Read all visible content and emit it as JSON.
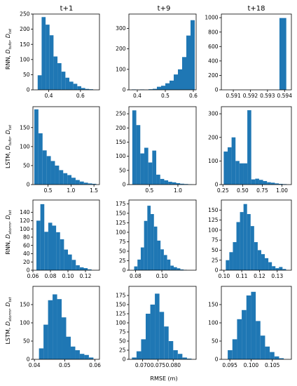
{
  "figure": {
    "col_titles": [
      "t+1",
      "t+9",
      "t+18"
    ],
    "xlabel": "RMSE (m)",
    "bar_color": "#1f77b4",
    "row_labels": [
      {
        "main": "RNN, ",
        "d1": "D",
        "s1": "tufo",
        "sep": ", ",
        "d2": "D",
        "s2": "tst"
      },
      {
        "main": "LSTM, ",
        "d1": "D",
        "s1": "tufo",
        "sep": ", ",
        "d2": "D",
        "s2": "tst"
      },
      {
        "main": "RNN, ",
        "d1": "D",
        "s1": "storm",
        "sep": ", ",
        "d2": "D",
        "s2": "tst"
      },
      {
        "main": "LSTM, ",
        "d1": "D",
        "s1": "storm",
        "sep": ", ",
        "d2": "D",
        "s2": "tst"
      }
    ]
  },
  "chart_data": [
    {
      "type": "bar",
      "row": 0,
      "col": 0,
      "title": "t+1",
      "xlim": [
        0.3,
        0.72
      ],
      "ylim": [
        0,
        250
      ],
      "xticks": [
        0.4,
        0.6
      ],
      "xtick_labels": [
        "0.4",
        "0.6"
      ],
      "yticks": [
        0,
        50,
        100,
        150,
        200,
        250
      ],
      "ytick_labels": [
        "0",
        "50",
        "100",
        "150",
        "200",
        "250"
      ],
      "bin_edges": [
        0.33,
        0.355,
        0.38,
        0.405,
        0.43,
        0.455,
        0.48,
        0.505,
        0.53,
        0.555,
        0.58,
        0.605,
        0.63,
        0.655,
        0.68,
        0.705
      ],
      "values": [
        48,
        240,
        215,
        180,
        110,
        88,
        60,
        40,
        27,
        20,
        12,
        6,
        3,
        2,
        0
      ]
    },
    {
      "type": "bar",
      "row": 0,
      "col": 1,
      "title": "t+9",
      "xlim": [
        0.37,
        0.61
      ],
      "ylim": [
        0,
        370
      ],
      "xticks": [
        0.4,
        0.5,
        0.6
      ],
      "xtick_labels": [
        "0.4",
        "0.5",
        "0.6"
      ],
      "yticks": [
        0,
        100,
        200,
        300
      ],
      "ytick_labels": [
        "0",
        "100",
        "200",
        "300"
      ],
      "bin_edges": [
        0.38,
        0.395,
        0.41,
        0.425,
        0.44,
        0.455,
        0.47,
        0.485,
        0.5,
        0.515,
        0.53,
        0.545,
        0.56,
        0.575,
        0.59,
        0.605
      ],
      "values": [
        2,
        1,
        2,
        1,
        3,
        5,
        15,
        20,
        32,
        45,
        75,
        100,
        160,
        265,
        340
      ]
    },
    {
      "type": "bar",
      "row": 0,
      "col": 2,
      "title": "t+18",
      "xlim": [
        0.5903,
        0.5944
      ],
      "ylim": [
        0,
        1050
      ],
      "xticks": [
        0.591,
        0.592,
        0.593,
        0.594
      ],
      "xtick_labels": [
        "0.591",
        "0.592",
        "0.593",
        "0.594"
      ],
      "yticks": [
        0,
        200,
        400,
        600,
        800,
        1000
      ],
      "ytick_labels": [
        "0",
        "200",
        "400",
        "600",
        "800",
        "1000"
      ],
      "bin_edges": [
        0.5937,
        0.5941
      ],
      "values": [
        995
      ]
    },
    {
      "type": "bar",
      "row": 1,
      "col": 0,
      "title": "",
      "xlim": [
        0.17,
        1.62
      ],
      "ylim": [
        0,
        205
      ],
      "xticks": [
        0.5,
        1.0,
        1.5
      ],
      "xtick_labels": [
        "0.5",
        "1.0",
        "1.5"
      ],
      "yticks": [
        0,
        50,
        100,
        150
      ],
      "ytick_labels": [
        "0",
        "50",
        "100",
        "150"
      ],
      "bin_edges": [
        0.2,
        0.29,
        0.38,
        0.47,
        0.56,
        0.65,
        0.74,
        0.83,
        0.92,
        1.01,
        1.1,
        1.19,
        1.28,
        1.37,
        1.46,
        1.55
      ],
      "values": [
        198,
        135,
        90,
        75,
        62,
        50,
        38,
        30,
        25,
        18,
        12,
        8,
        5,
        3,
        2
      ]
    },
    {
      "type": "bar",
      "row": 1,
      "col": 1,
      "title": "",
      "xlim": [
        0.14,
        1.32
      ],
      "ylim": [
        0,
        275
      ],
      "xticks": [
        0.5,
        1.0
      ],
      "xtick_labels": [
        "0.5",
        "1.0"
      ],
      "yticks": [
        0,
        50,
        100,
        150,
        200,
        250
      ],
      "ytick_labels": [
        "0",
        "50",
        "100",
        "150",
        "200",
        "250"
      ],
      "bin_edges": [
        0.2,
        0.27,
        0.34,
        0.41,
        0.48,
        0.55,
        0.62,
        0.69,
        0.76,
        0.83,
        0.9,
        0.97,
        1.04,
        1.11,
        1.18,
        1.25
      ],
      "values": [
        262,
        210,
        110,
        130,
        78,
        120,
        35,
        20,
        15,
        10,
        8,
        5,
        3,
        2,
        1
      ]
    },
    {
      "type": "bar",
      "row": 1,
      "col": 2,
      "title": "",
      "xlim": [
        0.23,
        1.12
      ],
      "ylim": [
        0,
        330
      ],
      "xticks": [
        0.25,
        0.5,
        0.75,
        1.0
      ],
      "xtick_labels": [
        "0.25",
        "0.50",
        "0.75",
        "1.00"
      ],
      "yticks": [
        0,
        100,
        200,
        300
      ],
      "ytick_labels": [
        "0",
        "100",
        "200",
        "300"
      ],
      "bin_edges": [
        0.26,
        0.31,
        0.36,
        0.41,
        0.46,
        0.51,
        0.56,
        0.61,
        0.66,
        0.71,
        0.76,
        0.81,
        0.86,
        0.91,
        0.96,
        1.01,
        1.06
      ],
      "values": [
        140,
        158,
        200,
        100,
        90,
        90,
        315,
        22,
        25,
        20,
        15,
        10,
        8,
        5,
        3,
        2
      ]
    },
    {
      "type": "bar",
      "row": 2,
      "col": 0,
      "title": "",
      "xlim": [
        0.06,
        0.136
      ],
      "ylim": [
        0,
        170
      ],
      "xticks": [
        0.06,
        0.08,
        0.1,
        0.12
      ],
      "xtick_labels": [
        "0.06",
        "0.08",
        "0.10",
        "0.12"
      ],
      "yticks": [
        0,
        20,
        40,
        60,
        80,
        100,
        120,
        140
      ],
      "ytick_labels": [
        "0",
        "20",
        "40",
        "60",
        "80",
        "100",
        "120",
        "140"
      ],
      "bin_edges": [
        0.064,
        0.0685,
        0.073,
        0.0775,
        0.082,
        0.0865,
        0.091,
        0.0955,
        0.1,
        0.1045,
        0.109,
        0.1135,
        0.118,
        0.1225,
        0.127
      ],
      "values": [
        120,
        160,
        93,
        115,
        108,
        92,
        75,
        50,
        38,
        25,
        12,
        7,
        5,
        2
      ]
    },
    {
      "type": "bar",
      "row": 2,
      "col": 1,
      "title": "",
      "xlim": [
        0.075,
        0.126
      ],
      "ylim": [
        0,
        185
      ],
      "xticks": [
        0.08,
        0.1
      ],
      "xtick_labels": [
        "0.08",
        "0.10"
      ],
      "yticks": [
        0,
        25,
        50,
        75,
        100,
        125,
        150,
        175
      ],
      "ytick_labels": [
        "0",
        "25",
        "50",
        "75",
        "100",
        "125",
        "150",
        "175"
      ],
      "bin_edges": [
        0.079,
        0.0815,
        0.084,
        0.0865,
        0.089,
        0.0915,
        0.094,
        0.0965,
        0.099,
        0.1015,
        0.104,
        0.1065,
        0.109,
        0.1115,
        0.114,
        0.1165,
        0.119
      ],
      "values": [
        10,
        28,
        60,
        130,
        170,
        148,
        115,
        78,
        55,
        40,
        28,
        12,
        8,
        5,
        2,
        1
      ]
    },
    {
      "type": "bar",
      "row": 2,
      "col": 2,
      "title": "",
      "xlim": [
        0.0985,
        0.138
      ],
      "ylim": [
        0,
        175
      ],
      "xticks": [
        0.1,
        0.11,
        0.12,
        0.13
      ],
      "xtick_labels": [
        "0.10",
        "0.11",
        "0.12",
        "0.13"
      ],
      "yticks": [
        0,
        25,
        50,
        75,
        100,
        125,
        150
      ],
      "ytick_labels": [
        "0",
        "25",
        "50",
        "75",
        "100",
        "125",
        "150"
      ],
      "bin_edges": [
        0.101,
        0.103,
        0.105,
        0.107,
        0.109,
        0.111,
        0.113,
        0.115,
        0.117,
        0.119,
        0.121,
        0.123,
        0.125,
        0.127,
        0.129,
        0.131,
        0.133,
        0.135
      ],
      "values": [
        25,
        45,
        70,
        120,
        145,
        165,
        140,
        110,
        70,
        50,
        40,
        30,
        20,
        10,
        5,
        8,
        3
      ]
    },
    {
      "type": "bar",
      "row": 3,
      "col": 0,
      "title": "",
      "xlim": [
        0.0395,
        0.0615
      ],
      "ylim": [
        0,
        200
      ],
      "xticks": [
        0.04,
        0.05,
        0.06
      ],
      "xtick_labels": [
        "0.04",
        "0.05",
        "0.06"
      ],
      "yticks": [
        0,
        50,
        100,
        150
      ],
      "ytick_labels": [
        "0",
        "50",
        "100",
        "150"
      ],
      "bin_edges": [
        0.0415,
        0.043,
        0.0445,
        0.046,
        0.0475,
        0.049,
        0.0505,
        0.052,
        0.0535,
        0.055,
        0.0565,
        0.058,
        0.0595
      ],
      "values": [
        30,
        95,
        162,
        178,
        165,
        115,
        62,
        35,
        25,
        15,
        12,
        5
      ]
    },
    {
      "type": "bar",
      "row": 3,
      "col": 1,
      "title": "",
      "xlim": [
        0.0655,
        0.0875
      ],
      "ylim": [
        0,
        200
      ],
      "xticks": [
        0.07,
        0.075,
        0.08
      ],
      "xtick_labels": [
        "0.070",
        "0.075",
        "0.080"
      ],
      "yticks": [
        0,
        25,
        50,
        75,
        100,
        125,
        150,
        175
      ],
      "ytick_labels": [
        "0",
        "25",
        "50",
        "75",
        "100",
        "125",
        "150",
        "175"
      ],
      "bin_edges": [
        0.0665,
        0.068,
        0.0695,
        0.071,
        0.0725,
        0.074,
        0.0755,
        0.077,
        0.0785,
        0.08,
        0.0815,
        0.083,
        0.0845,
        0.086
      ],
      "values": [
        5,
        22,
        55,
        125,
        150,
        180,
        130,
        90,
        50,
        25,
        15,
        5,
        2
      ]
    },
    {
      "type": "bar",
      "row": 3,
      "col": 2,
      "title": "",
      "xlim": [
        0.093,
        0.1095
      ],
      "ylim": [
        0,
        200
      ],
      "xticks": [
        0.095,
        0.1,
        0.105
      ],
      "xtick_labels": [
        "0.095",
        "0.100",
        "0.105"
      ],
      "yticks": [
        0,
        50,
        100,
        150
      ],
      "ytick_labels": [
        "0",
        "50",
        "100",
        "150"
      ],
      "bin_edges": [
        0.0945,
        0.0956,
        0.0967,
        0.0978,
        0.0989,
        0.1,
        0.1011,
        0.1022,
        0.1033,
        0.1044,
        0.1055,
        0.1066,
        0.1077
      ],
      "values": [
        25,
        55,
        110,
        135,
        175,
        185,
        105,
        65,
        35,
        20,
        8,
        3
      ]
    }
  ]
}
